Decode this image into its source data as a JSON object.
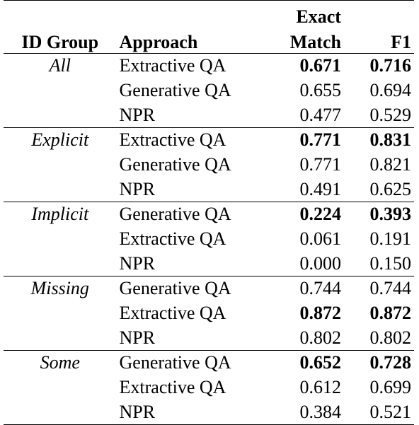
{
  "table": {
    "headers": {
      "group": "ID Group",
      "approach": "Approach",
      "exact_top": "Exact",
      "exact_bottom": "Match",
      "f1": "F1"
    },
    "groups": [
      {
        "name": "All",
        "rows": [
          {
            "approach": "Extractive QA",
            "em": "0.671",
            "f1": "0.716",
            "best": true
          },
          {
            "approach": "Generative QA",
            "em": "0.655",
            "f1": "0.694",
            "best": false
          },
          {
            "approach": "NPR",
            "em": "0.477",
            "f1": "0.529",
            "best": false
          }
        ]
      },
      {
        "name": "Explicit",
        "rows": [
          {
            "approach": "Extractive QA",
            "em": "0.771",
            "f1": "0.831",
            "best": true
          },
          {
            "approach": "Generative QA",
            "em": "0.771",
            "f1": "0.821",
            "best": false
          },
          {
            "approach": "NPR",
            "em": "0.491",
            "f1": "0.625",
            "best": false
          }
        ]
      },
      {
        "name": "Implicit",
        "rows": [
          {
            "approach": "Generative QA",
            "em": "0.224",
            "f1": "0.393",
            "best": true
          },
          {
            "approach": "Extractive QA",
            "em": "0.061",
            "f1": "0.191",
            "best": false
          },
          {
            "approach": "NPR",
            "em": "0.000",
            "f1": "0.150",
            "best": false
          }
        ]
      },
      {
        "name": "Missing",
        "rows": [
          {
            "approach": "Generative QA",
            "em": "0.744",
            "f1": "0.744",
            "best": false
          },
          {
            "approach": "Extractive QA",
            "em": "0.872",
            "f1": "0.872",
            "best": true
          },
          {
            "approach": "NPR",
            "em": "0.802",
            "f1": "0.802",
            "best": false
          }
        ]
      },
      {
        "name": "Some",
        "rows": [
          {
            "approach": "Generative QA",
            "em": "0.652",
            "f1": "0.728",
            "best": true
          },
          {
            "approach": "Extractive QA",
            "em": "0.612",
            "f1": "0.699",
            "best": false
          },
          {
            "approach": "NPR",
            "em": "0.384",
            "f1": "0.521",
            "best": false
          }
        ]
      }
    ]
  }
}
